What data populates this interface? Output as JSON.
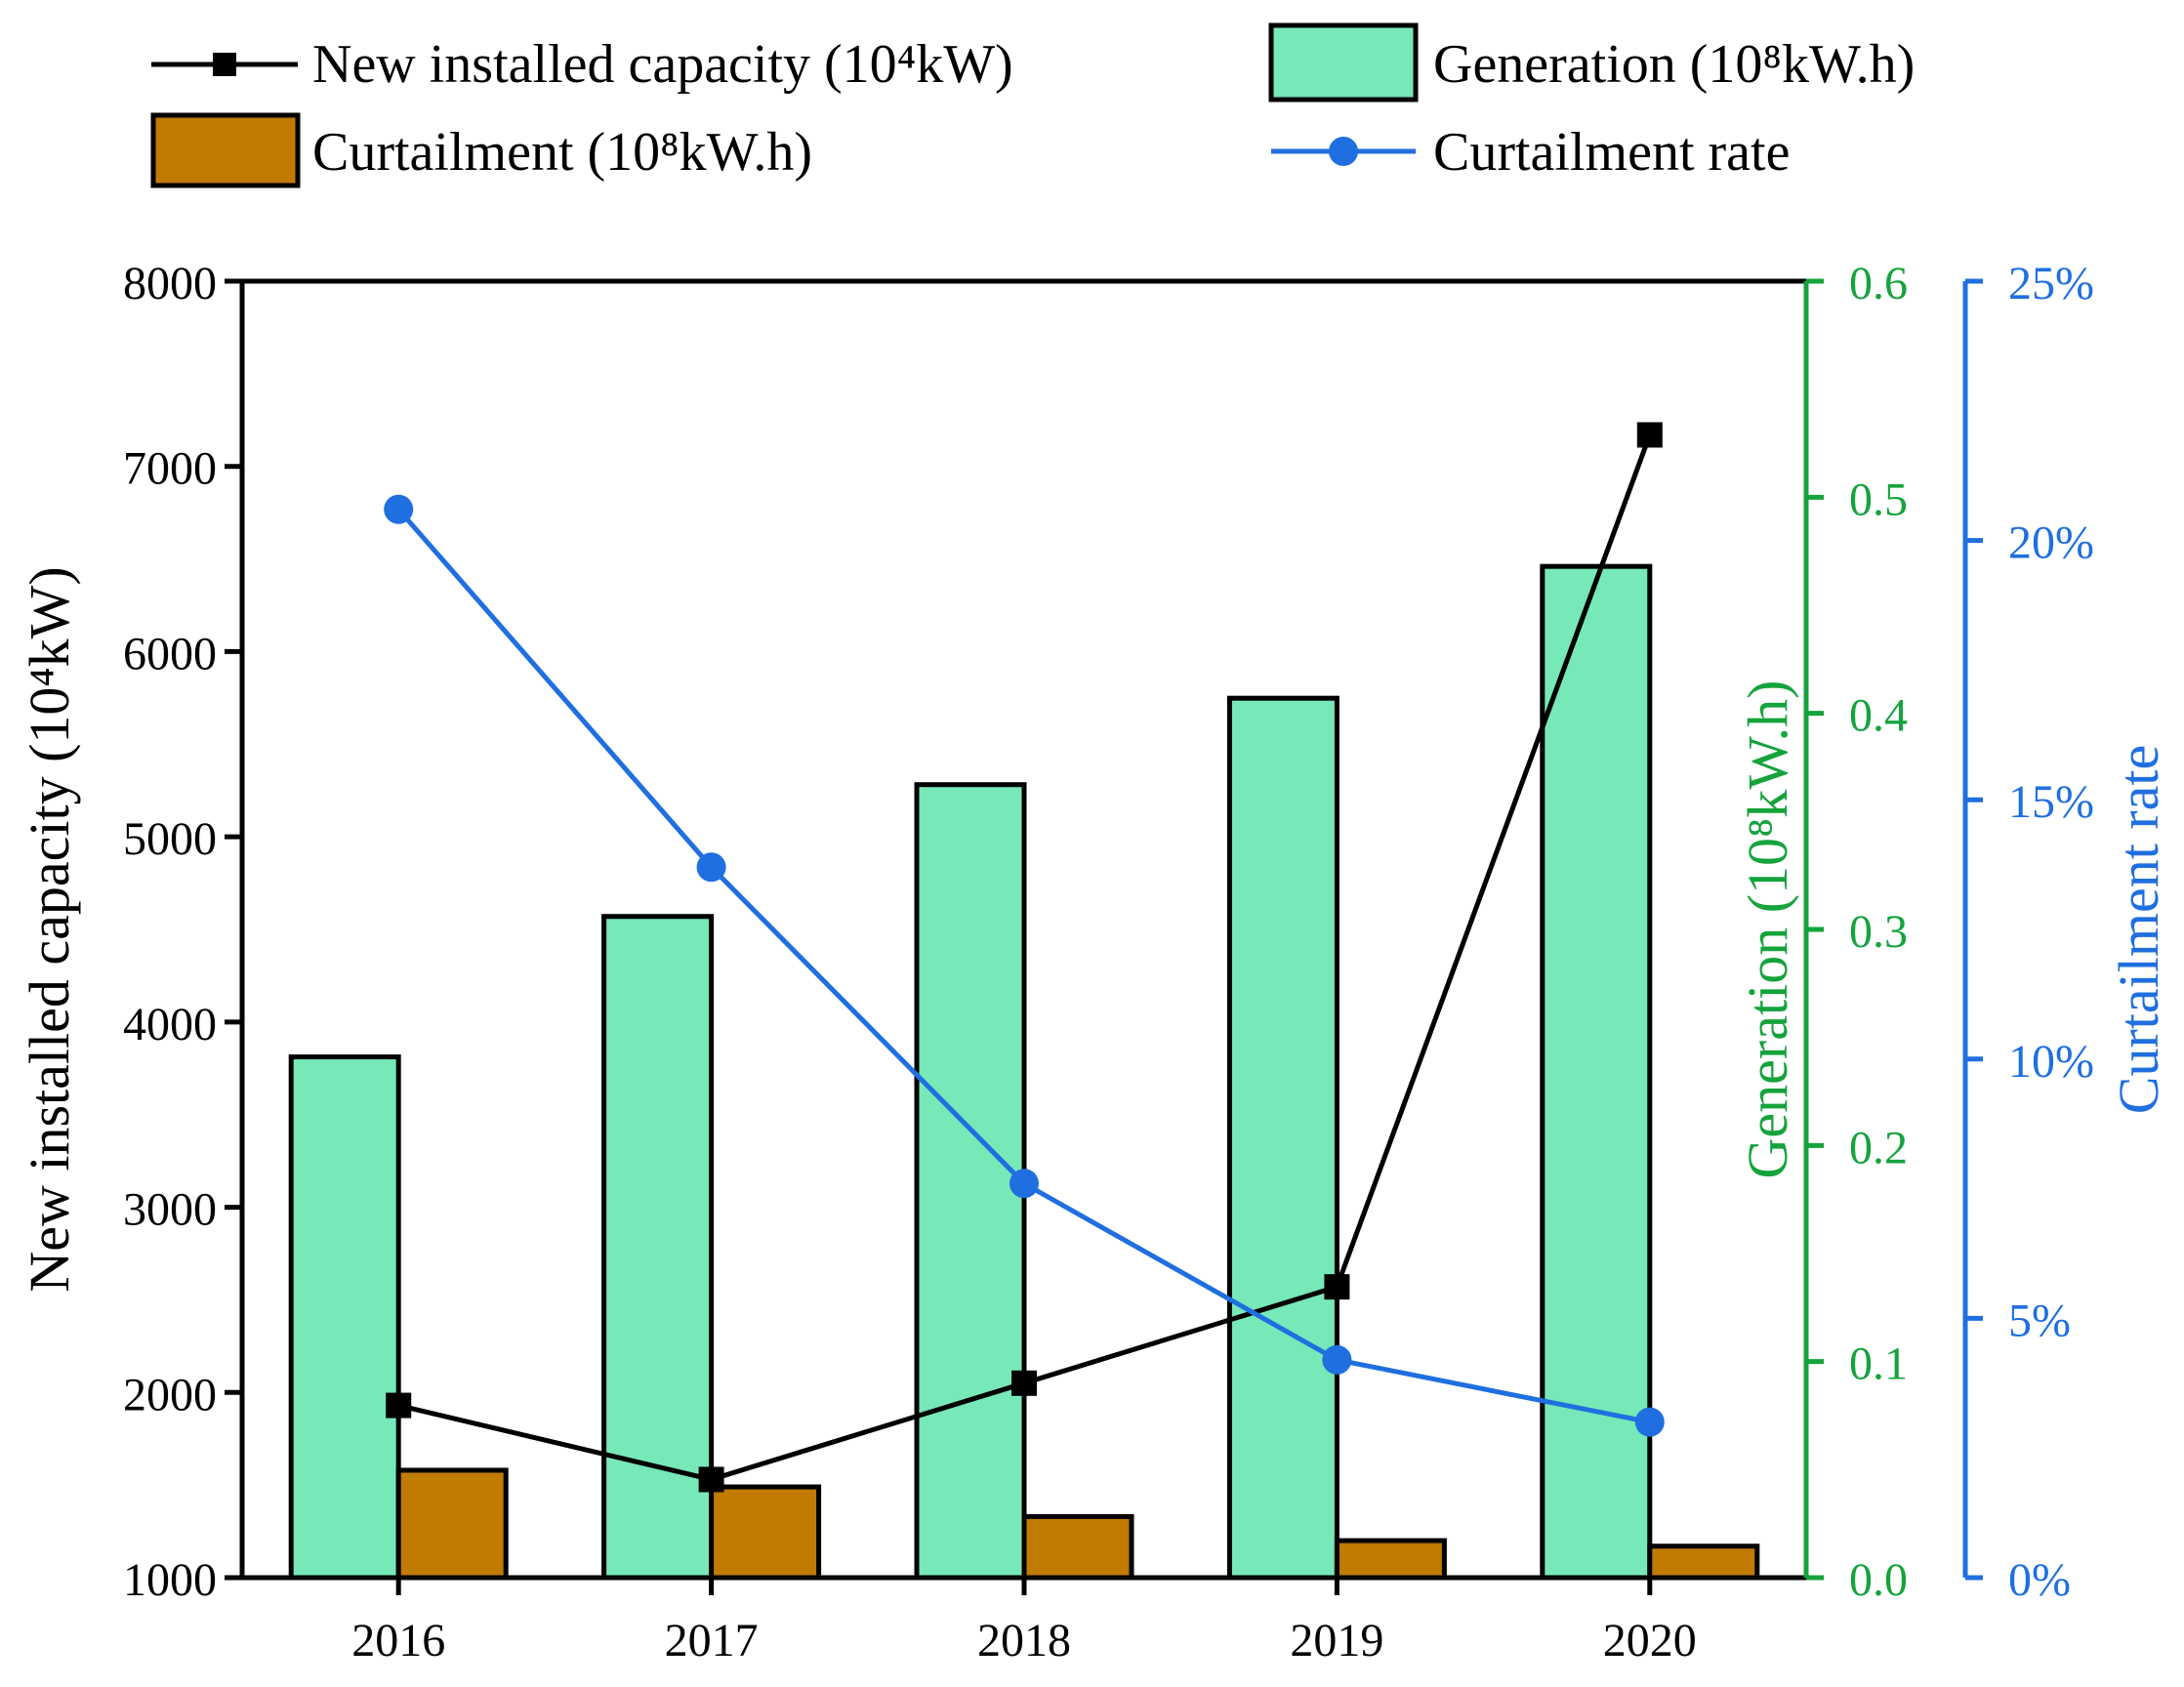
{
  "colors": {
    "capacity": "#000000",
    "generation_fill": "#77e8b8",
    "curtailment_fill": "#c07b00",
    "rate": "#1f6fe0",
    "generation_axis": "#15a33c",
    "rate_axis": "#1f6fe0",
    "axis": "#000000"
  },
  "chart_data": {
    "type": "bar",
    "categories": [
      "2016",
      "2017",
      "2018",
      "2019",
      "2020"
    ],
    "series": [
      {
        "name": "New installed capacity (10⁴kW)",
        "kind": "line-square-marker",
        "axis": "left",
        "values": [
          1930,
          1530,
          2050,
          2570,
          7170
        ]
      },
      {
        "name": "Generation (10⁸kW.h)",
        "kind": "bar",
        "axis": "right-generation",
        "values": [
          0.241,
          0.306,
          0.367,
          0.407,
          0.468
        ]
      },
      {
        "name": "Curtailment (10⁸kW.h)",
        "kind": "bar",
        "axis": "left",
        "values": [
          1580,
          1490,
          1330,
          1200,
          1170
        ]
      },
      {
        "name": "Curtailment rate",
        "kind": "line-circle-marker",
        "axis": "right-rate",
        "values": [
          20.6,
          13.7,
          7.6,
          4.2,
          3.0
        ]
      }
    ],
    "axes": {
      "left": {
        "label": "New installed capacity (10⁴kW)",
        "min": 1000,
        "max": 8000,
        "ticks": [
          "1000",
          "2000",
          "3000",
          "4000",
          "5000",
          "6000",
          "7000",
          "8000"
        ]
      },
      "right_generation": {
        "label": "Generation (10⁸kW.h)",
        "min": 0,
        "max": 0.6,
        "ticks": [
          "0.0",
          "0.1",
          "0.2",
          "0.3",
          "0.4",
          "0.5",
          "0.6"
        ]
      },
      "right_rate": {
        "label": "Curtailment rate",
        "min": 0,
        "max": 25,
        "ticks": [
          "0%",
          "5%",
          "10%",
          "15%",
          "20%",
          "25%"
        ]
      }
    },
    "legend": {
      "placement": "top",
      "entries": [
        "New installed capacity (10⁴kW)",
        "Generation (10⁸kW.h)",
        "Curtailment (10⁸kW.h)",
        "Curtailment rate"
      ]
    },
    "grid": false
  }
}
